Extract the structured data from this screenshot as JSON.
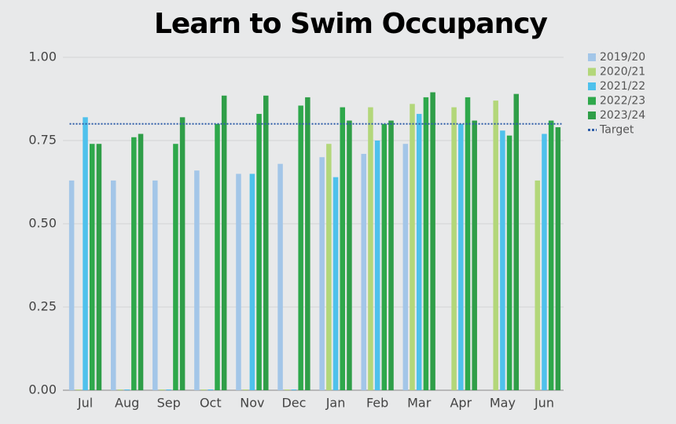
{
  "chart_data": {
    "type": "bar",
    "title": "Learn to Swim Occupancy",
    "categories": [
      "Jul",
      "Aug",
      "Sep",
      "Oct",
      "Nov",
      "Dec",
      "Jan",
      "Feb",
      "Mar",
      "Apr",
      "May",
      "Jun"
    ],
    "series": [
      {
        "name": "2019/20",
        "color": "#a3c6e8",
        "values": [
          0.63,
          0.63,
          0.63,
          0.66,
          0.65,
          0.68,
          0.7,
          0.71,
          0.74,
          null,
          null,
          null
        ]
      },
      {
        "name": "2020/21",
        "color": "#b3d77a",
        "values": [
          0,
          0,
          0,
          0,
          0,
          0,
          0.74,
          0.85,
          0.86,
          0.85,
          0.87,
          0.63
        ]
      },
      {
        "name": "2021/22",
        "color": "#4fc1ec",
        "values": [
          0.82,
          0,
          0,
          0,
          0.65,
          0,
          0.64,
          0.75,
          0.83,
          0.8,
          0.78,
          0.77
        ]
      },
      {
        "name": "2022/23",
        "color": "#2ea84b",
        "values": [
          0.74,
          0.76,
          0.74,
          0.8,
          0.83,
          0.855,
          0.85,
          0.8,
          0.88,
          0.88,
          0.765,
          0.81
        ]
      },
      {
        "name": "2023/24",
        "color": "#2f9e48",
        "values": [
          0.74,
          0.77,
          0.82,
          0.885,
          0.885,
          0.88,
          0.81,
          0.81,
          0.895,
          0.81,
          0.89,
          0.79
        ]
      }
    ],
    "target": {
      "name": "Target",
      "value": 0.8,
      "color": "#2f5ea8"
    },
    "ylim": [
      0,
      1
    ],
    "yticks": [
      {
        "value": 0,
        "label": "0.00"
      },
      {
        "value": 0.25,
        "label": "0.25"
      },
      {
        "value": 0.5,
        "label": "0.50"
      },
      {
        "value": 0.75,
        "label": "0.75"
      },
      {
        "value": 1,
        "label": "1.00"
      }
    ],
    "grid": true,
    "legend": "right"
  }
}
